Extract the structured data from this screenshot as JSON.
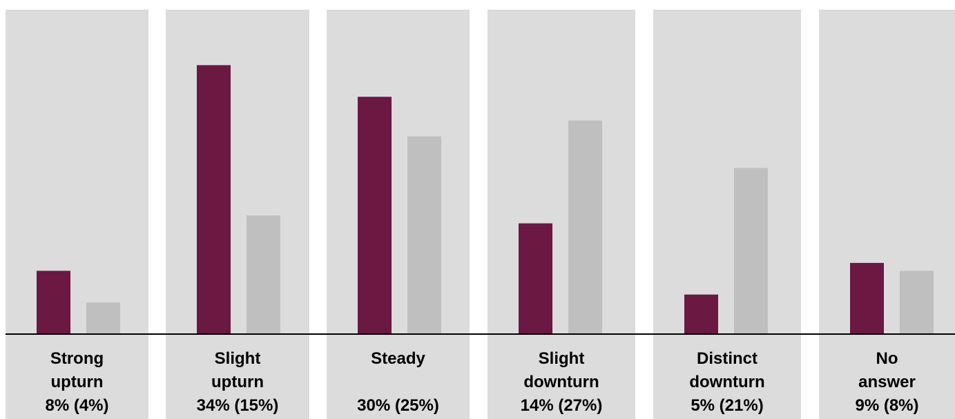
{
  "chart_data": {
    "type": "bar",
    "categories": [
      {
        "line1": "Strong",
        "line2": "upturn",
        "value_text": "8% (4%)"
      },
      {
        "line1": "Slight",
        "line2": "upturn",
        "value_text": "34% (15%)"
      },
      {
        "line1": "Steady",
        "line2": "",
        "value_text": "30% (25%)"
      },
      {
        "line1": "Slight",
        "line2": "downturn",
        "value_text": "14% (27%)"
      },
      {
        "line1": "Distinct",
        "line2": "downturn",
        "value_text": "5% (21%)"
      },
      {
        "line1": "No",
        "line2": "answer",
        "value_text": "9% (8%)"
      }
    ],
    "series": [
      {
        "values": [
          8,
          34,
          30,
          14,
          5,
          9
        ],
        "color": "#6b1843"
      },
      {
        "values": [
          4,
          15,
          25,
          27,
          21,
          8
        ],
        "color": "#bfbfbf"
      }
    ],
    "ylim": [
      0,
      37
    ],
    "grid": false,
    "legend": "none",
    "panel_color": "#dcdcdc",
    "axis_color": "#000000"
  }
}
